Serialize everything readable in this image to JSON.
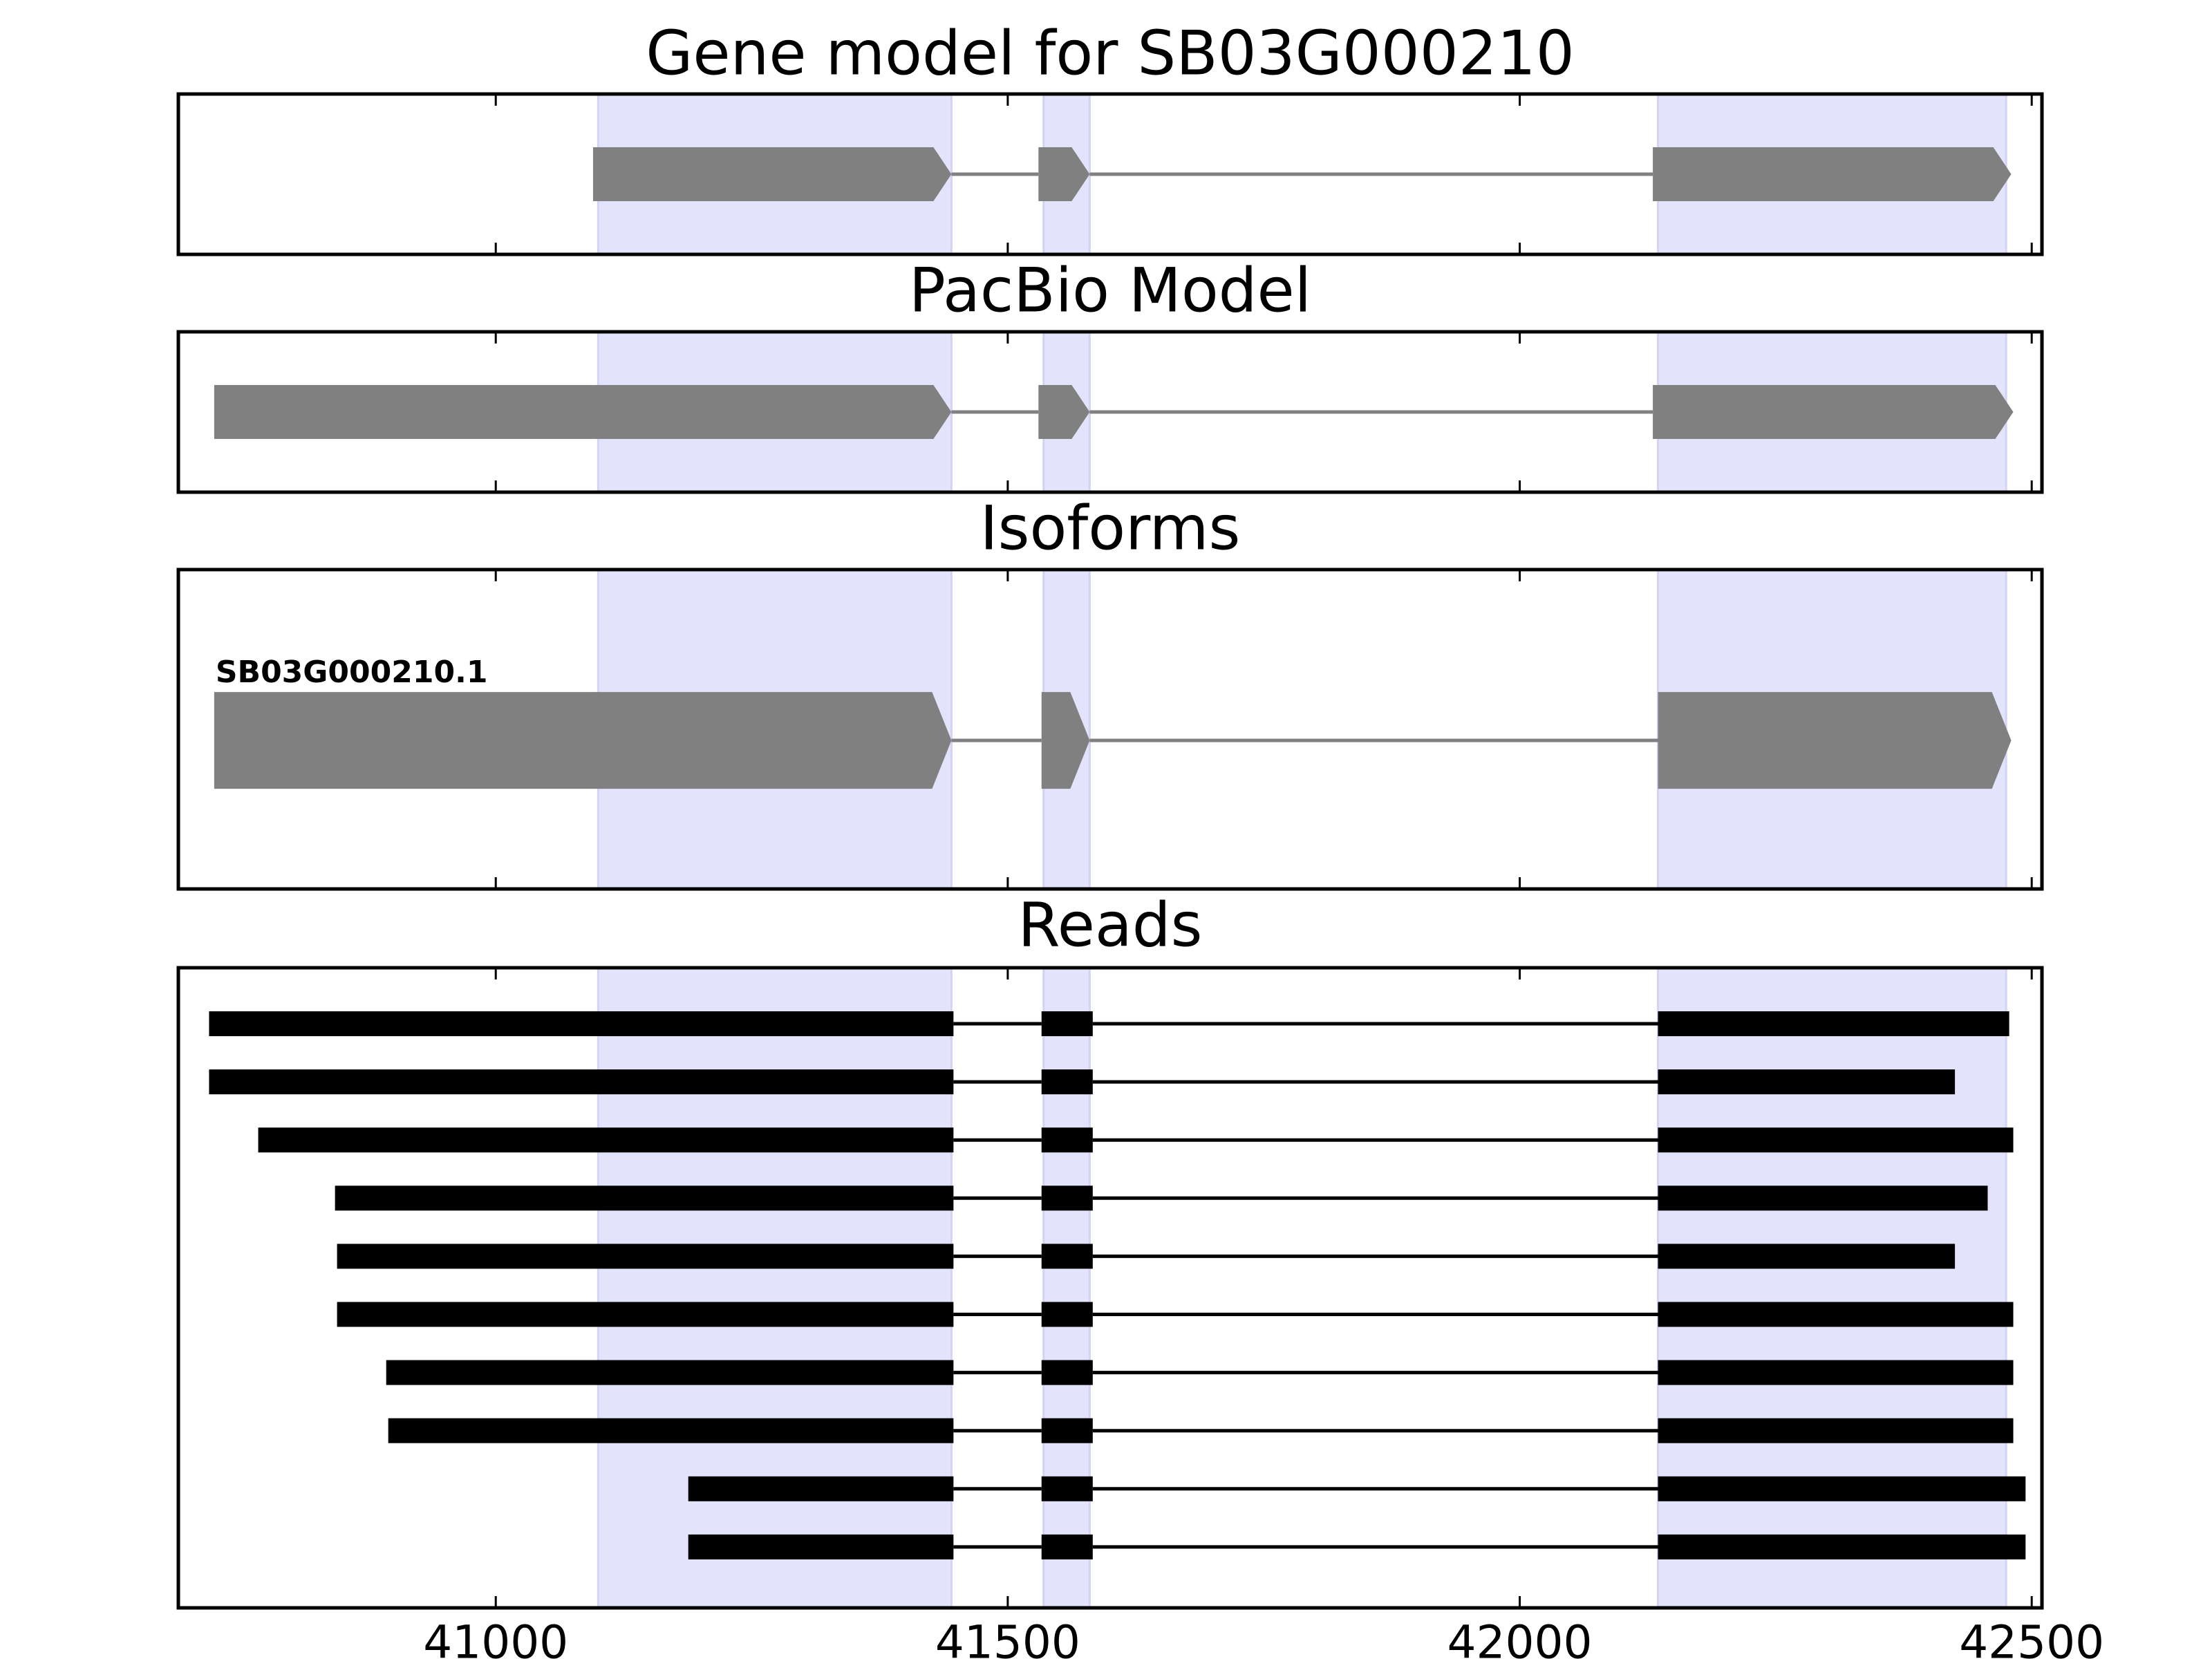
{
  "colors": {
    "exon_region": "#e3e3fb",
    "exon_region_edge": "#d3d3f5",
    "model": "#808080",
    "read": "#000000",
    "frame": "#000000",
    "background": "#ffffff"
  },
  "chart_data": [
    {
      "type": "gene_model",
      "title": "Gene model for SB03G000210",
      "xlim": [
        40690,
        42510
      ],
      "xticks": [
        41000,
        41500,
        42000,
        42500
      ],
      "tick_labels_visible": false,
      "exon_regions": [
        [
          41100,
          41445
        ],
        [
          41535,
          41580
        ],
        [
          42135,
          42475
        ]
      ],
      "tracks": [
        {
          "label": "",
          "strand": "+",
          "exons": [
            [
              41095,
              41445
            ],
            [
              41530,
              41580
            ],
            [
              42130,
              42480
            ]
          ]
        }
      ]
    },
    {
      "type": "gene_model",
      "title": "PacBio Model",
      "xlim": [
        40690,
        42510
      ],
      "xticks": [
        41000,
        41500,
        42000,
        42500
      ],
      "tick_labels_visible": false,
      "exon_regions": [
        [
          41100,
          41445
        ],
        [
          41535,
          41580
        ],
        [
          42135,
          42475
        ]
      ],
      "tracks": [
        {
          "label": "",
          "strand": "+",
          "exons": [
            [
              40725,
              41445
            ],
            [
              41530,
              41580
            ],
            [
              42130,
              42482
            ]
          ]
        }
      ]
    },
    {
      "type": "gene_model",
      "title": "Isoforms",
      "xlim": [
        40690,
        42510
      ],
      "xticks": [
        41000,
        41500,
        42000,
        42500
      ],
      "tick_labels_visible": false,
      "exon_regions": [
        [
          41100,
          41445
        ],
        [
          41535,
          41580
        ],
        [
          42135,
          42475
        ]
      ],
      "tracks": [
        {
          "label": "SB03G000210.1",
          "strand": "+",
          "exons": [
            [
              40725,
              41445
            ],
            [
              41533,
              41580
            ],
            [
              42135,
              42480
            ]
          ]
        }
      ]
    },
    {
      "type": "reads",
      "title": "Reads",
      "xlim": [
        40690,
        42510
      ],
      "xticks": [
        41000,
        41500,
        42000,
        42500
      ],
      "tick_labels_visible": true,
      "tick_labels": [
        "41000",
        "41500",
        "42000",
        "42500"
      ],
      "exon_regions": [
        [
          41100,
          41445
        ],
        [
          41535,
          41580
        ],
        [
          42135,
          42475
        ]
      ],
      "reads": [
        {
          "exons": [
            [
              40720,
              41447
            ],
            [
              41533,
              41583
            ],
            [
              42135,
              42478
            ]
          ]
        },
        {
          "exons": [
            [
              40720,
              41447
            ],
            [
              41533,
              41583
            ],
            [
              42135,
              42425
            ]
          ]
        },
        {
          "exons": [
            [
              40768,
              41447
            ],
            [
              41533,
              41583
            ],
            [
              42135,
              42482
            ]
          ]
        },
        {
          "exons": [
            [
              40843,
              41447
            ],
            [
              41533,
              41583
            ],
            [
              42135,
              42457
            ]
          ]
        },
        {
          "exons": [
            [
              40845,
              41447
            ],
            [
              41533,
              41583
            ],
            [
              42135,
              42425
            ]
          ]
        },
        {
          "exons": [
            [
              40845,
              41447
            ],
            [
              41533,
              41583
            ],
            [
              42135,
              42482
            ]
          ]
        },
        {
          "exons": [
            [
              40893,
              41447
            ],
            [
              41533,
              41583
            ],
            [
              42135,
              42482
            ]
          ]
        },
        {
          "exons": [
            [
              40895,
              41447
            ],
            [
              41533,
              41583
            ],
            [
              42135,
              42482
            ]
          ]
        },
        {
          "exons": [
            [
              41188,
              41447
            ],
            [
              41533,
              41583
            ],
            [
              42135,
              42494
            ]
          ]
        },
        {
          "exons": [
            [
              41188,
              41447
            ],
            [
              41533,
              41583
            ],
            [
              42135,
              42494
            ]
          ]
        }
      ]
    }
  ]
}
